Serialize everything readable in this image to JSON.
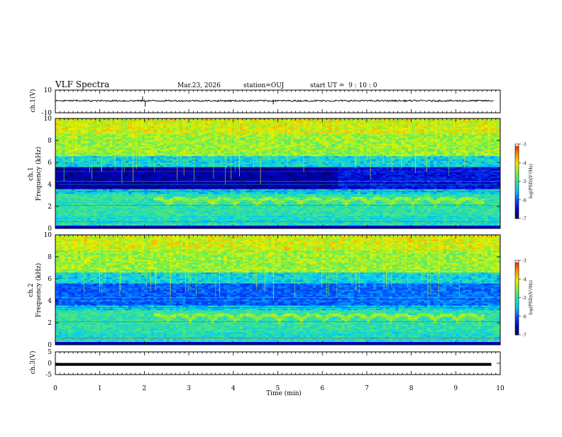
{
  "header": {
    "title": "VLF Spectra",
    "date": "Mar.23, 2026",
    "station": "station=OUJ",
    "start": "start UT =  9 : 10 : 0"
  },
  "colors": {
    "colormap": [
      "#000060",
      "#0000c8",
      "#0050ff",
      "#00c8ff",
      "#30e0a0",
      "#80f040",
      "#e8f000",
      "#ff9000",
      "#ff2000",
      "#ffffff"
    ]
  },
  "chart_data": [
    {
      "type": "line",
      "name": "ch1_waveform",
      "ylabel": "ch.1(V)",
      "ylim": [
        -10,
        10
      ],
      "ytick_labels": [
        "10",
        "-10"
      ],
      "x_range_min": [
        0,
        10
      ],
      "level_v": 0.6,
      "spikes": [
        {
          "t": 0.4,
          "v": 1.4
        },
        {
          "t": 1.96,
          "v": 4.5
        },
        {
          "t": 2.02,
          "v": -4.6
        },
        {
          "t": 4.9,
          "v": -2.5
        },
        {
          "t": 4.95,
          "v": 1.5
        }
      ]
    },
    {
      "type": "heatmap",
      "name": "ch1_spectrogram",
      "ylabel": "ch.1 Frequency (kHz)",
      "ylim": [
        0,
        10
      ],
      "ytick_labels": [
        "0",
        "2",
        "4",
        "6",
        "8",
        "10"
      ],
      "colorbar_label": "log(PSD)(V²/Hz)",
      "colorbar_range": [
        -7,
        -3
      ],
      "colorbar_tick_labels": [
        "-3",
        "-4",
        "-5",
        "-6",
        "-7"
      ]
    },
    {
      "type": "heatmap",
      "name": "ch2_spectrogram",
      "ylabel": "ch.2 Frequency (kHz)",
      "ylim": [
        0,
        10
      ],
      "ytick_labels": [
        "0",
        "2",
        "4",
        "6",
        "8",
        "10"
      ],
      "colorbar_label": "log(PSD)(V²/Hz)",
      "colorbar_range": [
        -7,
        -3
      ],
      "colorbar_tick_labels": [
        "-3",
        "-4",
        "-5",
        "-6",
        "-7"
      ]
    },
    {
      "type": "line",
      "name": "ch3_waveform",
      "ylabel": "ch.3(V)",
      "ylim": [
        -5,
        5
      ],
      "ytick_labels": [
        "5",
        "0",
        "-5"
      ],
      "level_v": -0.5,
      "xlabel": "Time (min)",
      "xlim": [
        0,
        10
      ],
      "xtick_labels": [
        "0",
        "1",
        "2",
        "3",
        "4",
        "5",
        "6",
        "7",
        "8",
        "9",
        "10"
      ]
    }
  ]
}
